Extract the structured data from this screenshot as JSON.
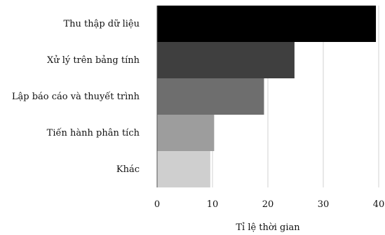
{
  "chart_data": {
    "type": "bar",
    "orientation": "horizontal",
    "categories": [
      "Thu thập dữ liệu",
      "Xử lý trên bảng tính",
      "Lập báo cáo và thuyết trình",
      "Tiến hành phân tích",
      "Khác"
    ],
    "values": [
      39.5,
      24.8,
      19.3,
      10.3,
      9.6
    ],
    "colors": [
      "#000000",
      "#3f3f3f",
      "#6e6e6e",
      "#9d9d9d",
      "#cfcfcf"
    ],
    "xlabel": "Tỉ lệ thời gian",
    "ylabel": "",
    "xlim": [
      0,
      40
    ],
    "xticks": [
      "0",
      "10",
      "20",
      "30",
      "40"
    ],
    "grid": "vertical"
  }
}
